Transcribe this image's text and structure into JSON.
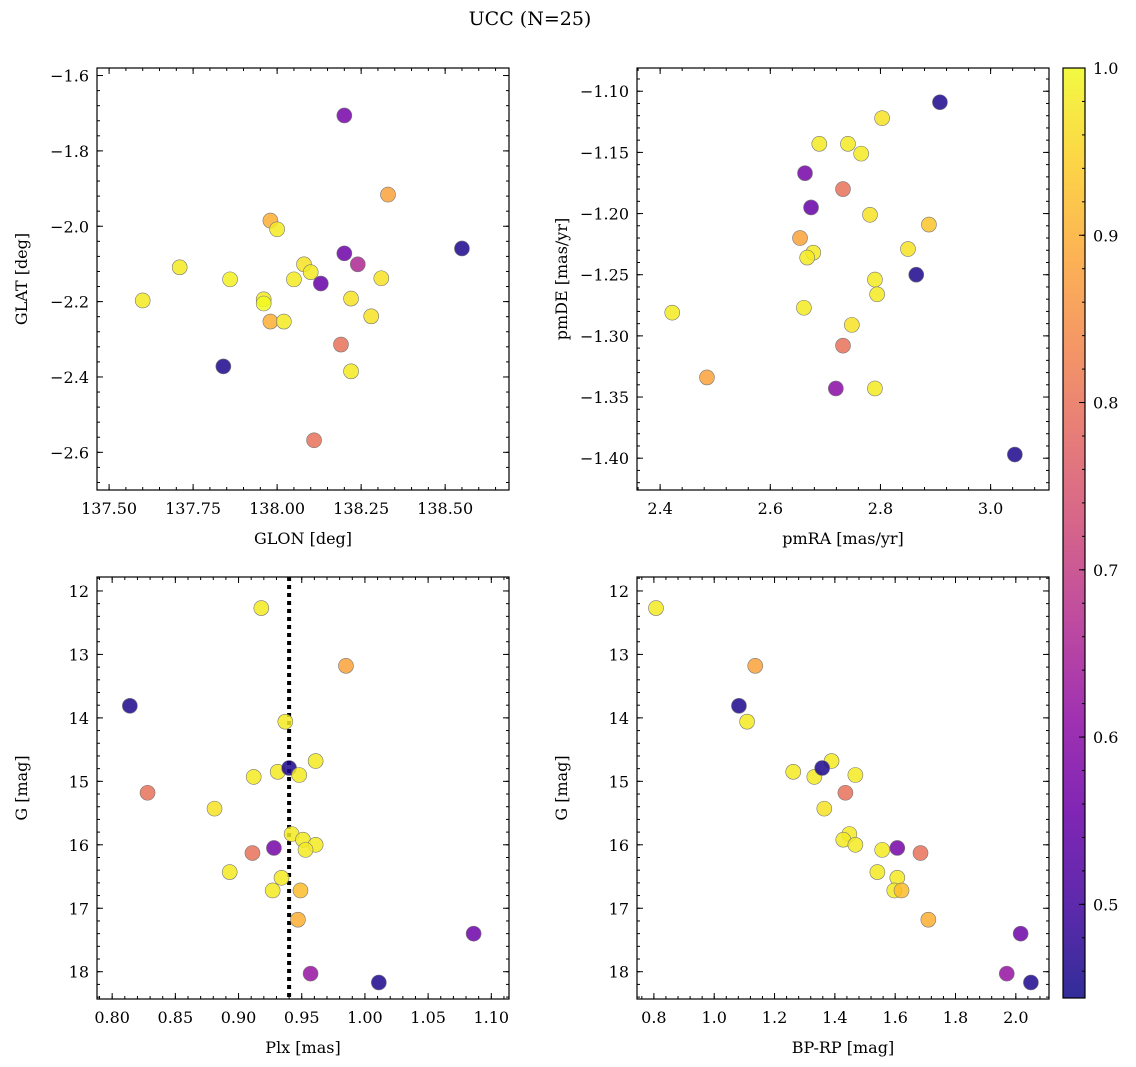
{
  "figure": {
    "title": "UCC (N=25)"
  },
  "colorbar": {
    "colormap": "plasma",
    "range": [
      0.444,
      1.0
    ],
    "ticks": [
      0.5,
      0.6,
      0.7,
      0.8,
      0.9,
      1.0
    ],
    "tick_labels": [
      "0.5",
      "0.6",
      "0.7",
      "0.8",
      "0.9",
      "1.0"
    ]
  },
  "chart_data": [
    {
      "type": "scatter",
      "xlabel": "GLON [deg]",
      "ylabel": "GLAT [deg]",
      "xlim": [
        137.464,
        138.69
      ],
      "ylim": [
        -2.7,
        -1.58
      ],
      "y_inverted": false,
      "xticks": [
        137.5,
        137.75,
        138.0,
        138.25,
        138.5
      ],
      "xtick_labels": [
        "137.50",
        "137.75",
        "138.00",
        "138.25",
        "138.50"
      ],
      "xminor": 0.05,
      "yticks": [
        -1.6,
        -1.8,
        -2.0,
        -2.2,
        -2.4,
        -2.6
      ],
      "ytick_labels": [
        "−1.6",
        "−1.8",
        "−2.0",
        "−2.2",
        "−2.4",
        "−2.6"
      ],
      "yminor": 0.04,
      "points": [
        [
          138.2,
          -1.706,
          0.57
        ],
        [
          138.33,
          -1.916,
          0.88
        ],
        [
          137.98,
          -1.985,
          0.9
        ],
        [
          138.0,
          -2.008,
          0.98
        ],
        [
          138.55,
          -2.059,
          0.46
        ],
        [
          138.2,
          -2.072,
          0.56
        ],
        [
          137.71,
          -2.109,
          0.98
        ],
        [
          138.08,
          -2.101,
          0.97
        ],
        [
          138.24,
          -2.101,
          0.66
        ],
        [
          138.1,
          -2.122,
          0.98
        ],
        [
          137.86,
          -2.141,
          0.99
        ],
        [
          138.05,
          -2.141,
          0.98
        ],
        [
          138.31,
          -2.138,
          0.97
        ],
        [
          138.13,
          -2.152,
          0.55
        ],
        [
          137.6,
          -2.197,
          0.98
        ],
        [
          137.96,
          -2.194,
          0.98
        ],
        [
          138.22,
          -2.192,
          0.97
        ],
        [
          137.96,
          -2.205,
          1.0
        ],
        [
          137.98,
          -2.253,
          0.9
        ],
        [
          138.02,
          -2.253,
          0.98
        ],
        [
          138.28,
          -2.239,
          0.97
        ],
        [
          138.19,
          -2.314,
          0.8
        ],
        [
          137.84,
          -2.372,
          0.46
        ],
        [
          138.22,
          -2.385,
          0.98
        ],
        [
          138.11,
          -2.568,
          0.8
        ]
      ]
    },
    {
      "type": "scatter",
      "xlabel": "pmRA [mas/yr]",
      "ylabel": "pmDE [mas/yr]",
      "xlim": [
        2.358,
        3.106
      ],
      "ylim": [
        -1.426,
        -1.081
      ],
      "y_inverted": false,
      "xticks": [
        2.4,
        2.6,
        2.8,
        3.0
      ],
      "xtick_labels": [
        "2.4",
        "2.6",
        "2.8",
        "3.0"
      ],
      "xminor": 0.04,
      "yticks": [
        -1.1,
        -1.15,
        -1.2,
        -1.25,
        -1.3,
        -1.35,
        -1.4
      ],
      "ytick_labels": [
        "−1.10",
        "−1.15",
        "−1.20",
        "−1.25",
        "−1.30",
        "−1.35",
        "−1.40"
      ],
      "yminor": 0.01,
      "points": [
        [
          2.908,
          -1.109,
          0.46
        ],
        [
          2.803,
          -1.122,
          0.97
        ],
        [
          2.689,
          -1.143,
          0.98
        ],
        [
          2.741,
          -1.143,
          0.98
        ],
        [
          2.765,
          -1.151,
          0.98
        ],
        [
          2.663,
          -1.167,
          0.57
        ],
        [
          2.732,
          -1.18,
          0.8
        ],
        [
          2.674,
          -1.195,
          0.55
        ],
        [
          2.781,
          -1.201,
          0.97
        ],
        [
          2.888,
          -1.209,
          0.93
        ],
        [
          2.654,
          -1.22,
          0.88
        ],
        [
          2.678,
          -1.232,
          0.98
        ],
        [
          2.667,
          -1.236,
          0.98
        ],
        [
          2.85,
          -1.229,
          0.97
        ],
        [
          2.865,
          -1.25,
          0.46
        ],
        [
          2.79,
          -1.254,
          0.98
        ],
        [
          2.794,
          -1.266,
          0.98
        ],
        [
          2.661,
          -1.277,
          0.98
        ],
        [
          2.422,
          -1.281,
          0.98
        ],
        [
          2.748,
          -1.291,
          0.97
        ],
        [
          2.732,
          -1.308,
          0.8
        ],
        [
          2.485,
          -1.334,
          0.88
        ],
        [
          2.719,
          -1.343,
          0.6
        ],
        [
          2.79,
          -1.343,
          0.98
        ],
        [
          3.044,
          -1.397,
          0.46
        ]
      ]
    },
    {
      "type": "scatter",
      "xlabel": "Plx [mas]",
      "ylabel": "G [mag]",
      "xlim": [
        0.788,
        1.114
      ],
      "ylim": [
        18.43,
        11.78
      ],
      "y_inverted": true,
      "xticks": [
        0.8,
        0.85,
        0.9,
        0.95,
        1.0,
        1.05,
        1.1
      ],
      "xtick_labels": [
        "0.80",
        "0.85",
        "0.90",
        "0.95",
        "1.00",
        "1.05",
        "1.10"
      ],
      "xminor": 0.01,
      "yticks": [
        12,
        13,
        14,
        15,
        16,
        17,
        18
      ],
      "ytick_labels": [
        "12",
        "13",
        "14",
        "15",
        "16",
        "17",
        "18"
      ],
      "yminor": 0.2,
      "vline": {
        "x": 0.94,
        "style": "dotted",
        "color": "#000000"
      },
      "points": [
        [
          0.918,
          12.27,
          0.98
        ],
        [
          0.985,
          13.18,
          0.88
        ],
        [
          0.814,
          13.81,
          0.46
        ],
        [
          0.937,
          14.06,
          0.98
        ],
        [
          0.961,
          14.68,
          0.98
        ],
        [
          0.912,
          14.93,
          0.98
        ],
        [
          0.931,
          14.85,
          0.98
        ],
        [
          0.94,
          14.79,
          0.46
        ],
        [
          0.948,
          14.9,
          0.98
        ],
        [
          0.828,
          15.18,
          0.8
        ],
        [
          0.881,
          15.43,
          0.97
        ],
        [
          0.942,
          15.83,
          0.98
        ],
        [
          0.951,
          15.92,
          0.98
        ],
        [
          0.961,
          16.0,
          0.98
        ],
        [
          0.953,
          16.08,
          0.98
        ],
        [
          0.911,
          16.13,
          0.8
        ],
        [
          0.928,
          16.05,
          0.57
        ],
        [
          0.893,
          16.43,
          0.98
        ],
        [
          0.934,
          16.52,
          0.98
        ],
        [
          0.927,
          16.72,
          0.98
        ],
        [
          0.949,
          16.72,
          0.92
        ],
        [
          0.947,
          17.18,
          0.9
        ],
        [
          1.086,
          17.4,
          0.56
        ],
        [
          0.957,
          18.03,
          0.62
        ],
        [
          1.011,
          18.17,
          0.46
        ]
      ]
    },
    {
      "type": "scatter",
      "xlabel": "BP-RP [mag]",
      "ylabel": "G [mag]",
      "xlim": [
        0.744,
        2.11
      ],
      "ylim": [
        18.43,
        11.78
      ],
      "y_inverted": true,
      "xticks": [
        0.8,
        1.0,
        1.2,
        1.4,
        1.6,
        1.8,
        2.0
      ],
      "xtick_labels": [
        "0.8",
        "1.0",
        "1.2",
        "1.4",
        "1.6",
        "1.8",
        "2.0"
      ],
      "xminor": 0.04,
      "yticks": [
        12,
        13,
        14,
        15,
        16,
        17,
        18
      ],
      "ytick_labels": [
        "12",
        "13",
        "14",
        "15",
        "16",
        "17",
        "18"
      ],
      "yminor": 0.2,
      "points": [
        [
          0.807,
          12.27,
          0.98
        ],
        [
          1.136,
          13.18,
          0.88
        ],
        [
          1.082,
          13.81,
          0.46
        ],
        [
          1.109,
          14.06,
          0.98
        ],
        [
          1.389,
          14.68,
          0.98
        ],
        [
          1.262,
          14.85,
          0.98
        ],
        [
          1.332,
          14.93,
          0.98
        ],
        [
          1.358,
          14.79,
          0.46
        ],
        [
          1.468,
          14.9,
          0.98
        ],
        [
          1.435,
          15.18,
          0.8
        ],
        [
          1.365,
          15.43,
          0.97
        ],
        [
          1.448,
          15.83,
          0.98
        ],
        [
          1.428,
          15.92,
          0.98
        ],
        [
          1.468,
          16.0,
          0.98
        ],
        [
          1.557,
          16.08,
          0.98
        ],
        [
          1.607,
          16.05,
          0.57
        ],
        [
          1.684,
          16.13,
          0.8
        ],
        [
          1.541,
          16.43,
          0.98
        ],
        [
          1.607,
          16.52,
          0.98
        ],
        [
          1.597,
          16.72,
          0.98
        ],
        [
          1.621,
          16.72,
          0.92
        ],
        [
          1.71,
          17.18,
          0.9
        ],
        [
          2.016,
          17.4,
          0.56
        ],
        [
          1.97,
          18.03,
          0.62
        ],
        [
          2.05,
          18.17,
          0.46
        ]
      ]
    }
  ]
}
